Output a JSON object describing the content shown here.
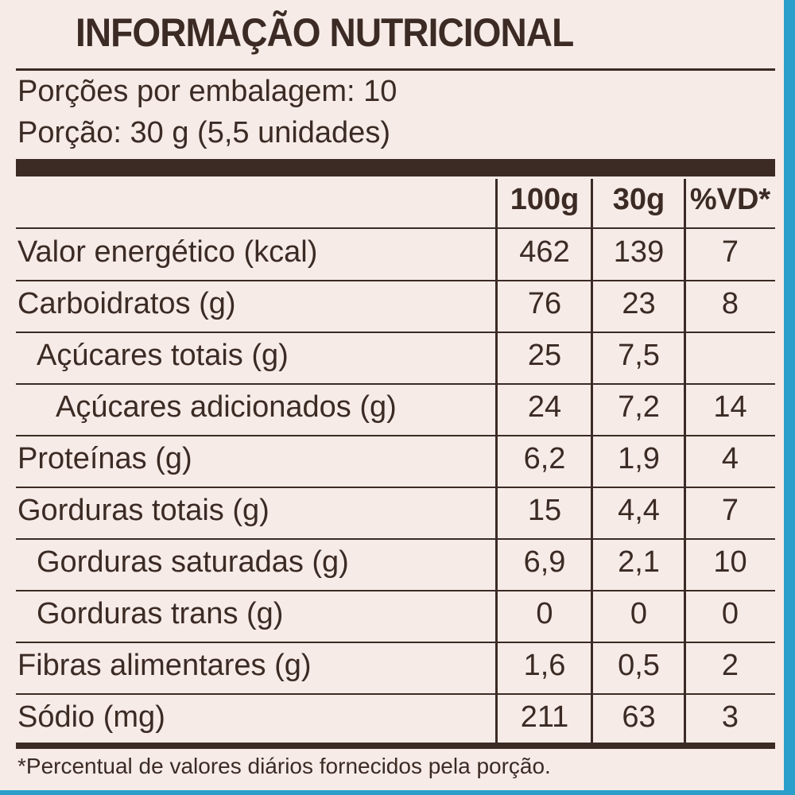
{
  "title": "INFORMAÇÃO NUTRICIONAL",
  "servings": {
    "per_package": "Porções por embalagem: 10",
    "portion": "Porção: 30 g (5,5 unidades)"
  },
  "table": {
    "columns": [
      "100g",
      "30g",
      "%VD*"
    ],
    "rows": [
      {
        "label": "Valor energético (kcal)",
        "per100g": "462",
        "per30g": "139",
        "vd": "7"
      },
      {
        "label": "Carboidratos (g)",
        "per100g": "76",
        "per30g": "23",
        "vd": "8"
      },
      {
        "label": "Açúcares totais (g)",
        "per100g": "25",
        "per30g": "7,5"
      },
      {
        "label": "Açúcares adicionados (g)",
        "per100g": "24",
        "per30g": "7,2",
        "vd": "14"
      },
      {
        "label": "Proteínas (g)",
        "per100g": "6,2",
        "per30g": "1,9",
        "vd": "4"
      },
      {
        "label": "Gorduras totais (g)",
        "per100g": "15",
        "per30g": "4,4",
        "vd": "7"
      },
      {
        "label": "Gorduras saturadas (g)",
        "per100g": "6,9",
        "per30g": "2,1",
        "vd": "10"
      },
      {
        "label": "Gorduras trans (g)",
        "per100g": "0",
        "per30g": "0",
        "vd": "0"
      },
      {
        "label": "Fibras alimentares (g)",
        "per100g": "1,6",
        "per30g": "0,5",
        "vd": "2"
      },
      {
        "label": "Sódio (mg)",
        "per100g": "211",
        "per30g": "63",
        "vd": "3"
      }
    ]
  },
  "footnote": "*Percentual de valores diários fornecidos pela porção."
}
